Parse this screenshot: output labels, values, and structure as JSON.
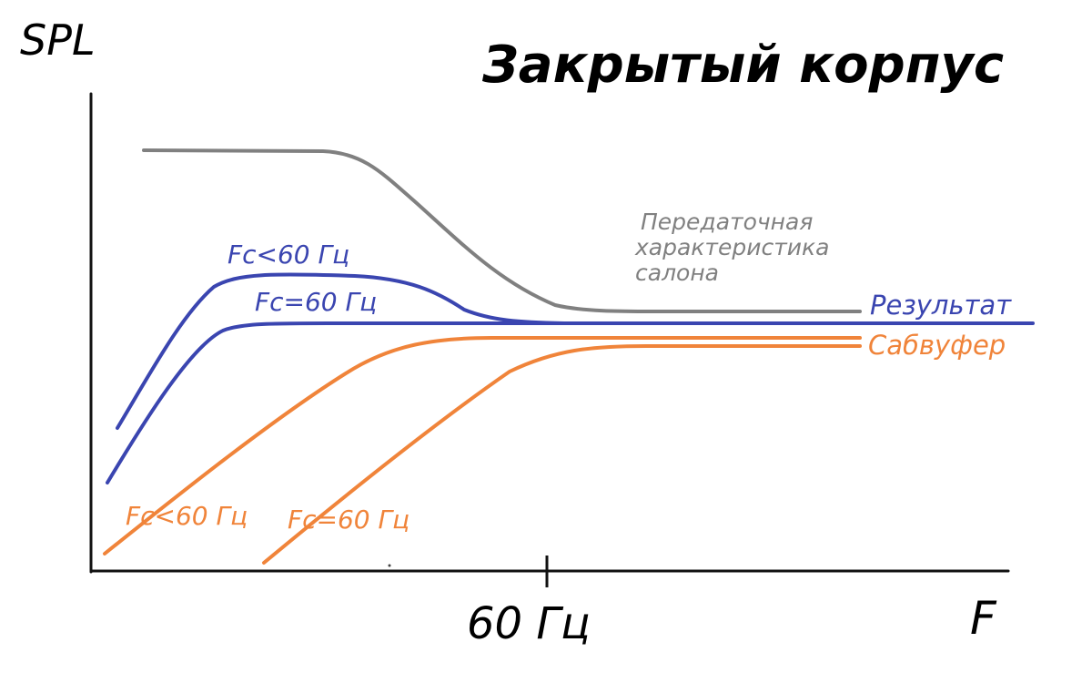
{
  "title": "Закрытый корпус",
  "y_axis_label": "SPL",
  "x_axis_label": "F",
  "x_tick_label": "60 Гц",
  "labels": {
    "cabin_response": [
      "Передаточная",
      "характеристика",
      "салона"
    ],
    "result": "Результат",
    "subwoofer": "Сабвуфер",
    "result_fc_low": "Fc<60 Гц",
    "result_fc_eq": "Fc=60 Гц",
    "sub_fc_low": "Fc<60 Гц",
    "sub_fc_eq": "Fc=60 Гц"
  },
  "colors": {
    "axis": "#111111",
    "cabin": "#808080",
    "result": "#3a45b0",
    "subwoofer": "#f0843a"
  }
}
